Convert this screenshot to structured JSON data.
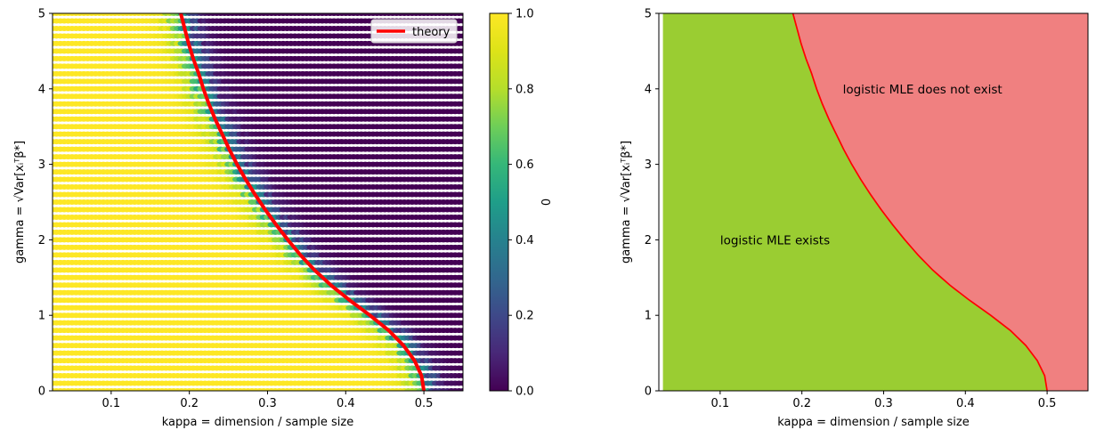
{
  "chart_data": [
    {
      "type": "scatter",
      "xlabel": "kappa = dimension / sample size",
      "ylabel": "gamma = √Var[xᵢᵀβ*]",
      "xlim": [
        0.025,
        0.55
      ],
      "ylim": [
        0,
        5
      ],
      "x_ticks": [
        "0.1",
        "0.2",
        "0.3",
        "0.4",
        "0.5"
      ],
      "y_ticks": [
        "0",
        "1",
        "2",
        "3",
        "4",
        "5"
      ],
      "grid": false,
      "legend": {
        "placement": "top-right",
        "entries": [
          "theory"
        ]
      },
      "colormap": "viridis",
      "colorbar": {
        "label": "0",
        "range": [
          0.0,
          1.0
        ],
        "ticks": [
          "0.0",
          "0.2",
          "0.4",
          "0.6",
          "0.8",
          "1.0"
        ]
      },
      "grid_points": {
        "kappa_step": 0.005,
        "gamma_step": 0.1
      },
      "theory_curve": {
        "name": "theory",
        "color": "#ff0000",
        "points": [
          [
            0.5,
            0.0
          ],
          [
            0.497,
            0.2
          ],
          [
            0.488,
            0.4
          ],
          [
            0.474,
            0.6
          ],
          [
            0.455,
            0.8
          ],
          [
            0.431,
            1.0
          ],
          [
            0.405,
            1.2
          ],
          [
            0.381,
            1.4
          ],
          [
            0.36,
            1.6
          ],
          [
            0.342,
            1.8
          ],
          [
            0.326,
            2.0
          ],
          [
            0.311,
            2.2
          ],
          [
            0.297,
            2.4
          ],
          [
            0.284,
            2.6
          ],
          [
            0.272,
            2.8
          ],
          [
            0.261,
            3.0
          ],
          [
            0.251,
            3.2
          ],
          [
            0.242,
            3.4
          ],
          [
            0.233,
            3.6
          ],
          [
            0.225,
            3.8
          ],
          [
            0.218,
            4.0
          ],
          [
            0.212,
            4.2
          ],
          [
            0.205,
            4.4
          ],
          [
            0.199,
            4.6
          ],
          [
            0.194,
            4.8
          ],
          [
            0.189,
            5.0
          ]
        ]
      }
    },
    {
      "type": "area",
      "xlabel": "kappa = dimension / sample size",
      "ylabel": "gamma = √Var[xᵢᵀβ*]",
      "xlim": [
        0.025,
        0.55
      ],
      "ylim": [
        0,
        5
      ],
      "x_ticks": [
        "0.1",
        "0.2",
        "0.3",
        "0.4",
        "0.5"
      ],
      "y_ticks": [
        "0",
        "1",
        "2",
        "3",
        "4",
        "5"
      ],
      "grid": false,
      "fill_start_kappa": 0.03,
      "regions": [
        {
          "label": "logistic MLE exists",
          "color": "#9acd32",
          "label_pos": [
            0.1,
            2.0
          ]
        },
        {
          "label": "logistic MLE does not exist",
          "color": "#f08080",
          "label_pos": [
            0.25,
            4.0
          ]
        }
      ],
      "boundary_color": "#ff0000"
    }
  ]
}
